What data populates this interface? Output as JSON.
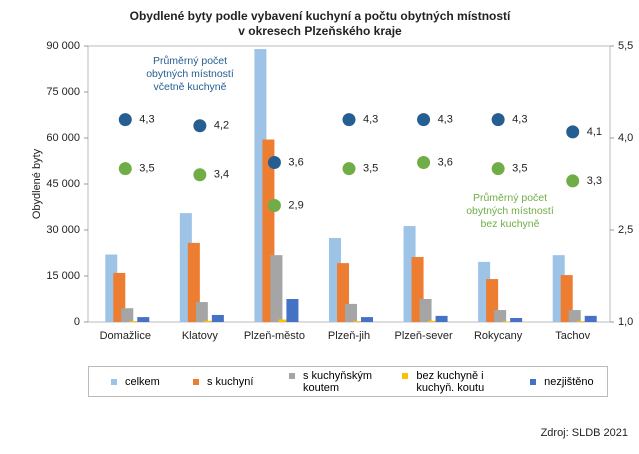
{
  "chart_data": {
    "type": "bar",
    "title": [
      "Obydlené byty  podle vybavení kuchyní  a počtu obytných  místností",
      "v okresech Plzeňského kraje"
    ],
    "y_label": "Obydlené byty",
    "categories": [
      "Domažlice",
      "Klatovy",
      "Plzeň-město",
      "Plzeň-jih",
      "Plzeň-sever",
      "Rokycany",
      "Tachov"
    ],
    "series": [
      {
        "name": "celkem",
        "color": "#9dc3e6",
        "values": [
          22000,
          35500,
          89000,
          27400,
          31300,
          19600,
          21800
        ]
      },
      {
        "name": "s kuchyní",
        "color": "#ed7d31",
        "values": [
          16000,
          25800,
          59500,
          19200,
          21200,
          14000,
          15300
        ]
      },
      {
        "name": "s kuchyňským koutem",
        "color": "#a5a5a5",
        "values": [
          4500,
          6500,
          21800,
          5900,
          7500,
          3900,
          3900
        ]
      },
      {
        "name": "bez kuchyně i kuchyň. koutu",
        "color": "#ffc000",
        "values": [
          300,
          400,
          800,
          300,
          400,
          200,
          300
        ]
      },
      {
        "name": "nezjištěno",
        "color": "#4472c4",
        "values": [
          1600,
          2300,
          7500,
          1600,
          2000,
          1300,
          2000
        ]
      },
      {
        "name": [
          "Průměrný počet",
          "obytných místností",
          "včetně kuchyně"
        ],
        "type": "scatter",
        "axis": "y2",
        "color": "#255e91",
        "values": [
          4.3,
          4.2,
          3.6,
          4.3,
          4.3,
          4.3,
          4.1
        ],
        "value_labels": [
          "4,3",
          "4,2",
          "3,6",
          "4,3",
          "4,3",
          "4,3",
          "4,1"
        ]
      },
      {
        "name": [
          "Průměrný počet",
          "obytných místností",
          "bez kuchyně"
        ],
        "type": "scatter",
        "axis": "y2",
        "color": "#70ad47",
        "values": [
          3.5,
          3.4,
          2.9,
          3.5,
          3.6,
          3.5,
          3.3
        ],
        "value_labels": [
          "3,5",
          "3,4",
          "2,9",
          "3,5",
          "3,6",
          "3,5",
          "3,3"
        ]
      }
    ],
    "ylim": [
      0,
      90000
    ],
    "yticks": [
      0,
      {
        "value": 15000,
        "label": "15 000"
      },
      {
        "value": 30000,
        "label": "30 000"
      },
      {
        "value": 45000,
        "label": "45 000"
      },
      {
        "value": 60000,
        "label": "60 000"
      },
      {
        "value": 75000,
        "label": "75 000"
      },
      {
        "value": 90000,
        "label": "90 000"
      }
    ],
    "y2lim": [
      1,
      5.5
    ],
    "y2ticks": [
      {
        "value": 1,
        "label": "1,0"
      },
      {
        "value": 2.5,
        "label": "2,5"
      },
      {
        "value": 4,
        "label": "4,0"
      },
      {
        "value": 5.5,
        "label": "5,5"
      }
    ],
    "grid": false,
    "source": "Zdroj: SLDB 2021"
  }
}
